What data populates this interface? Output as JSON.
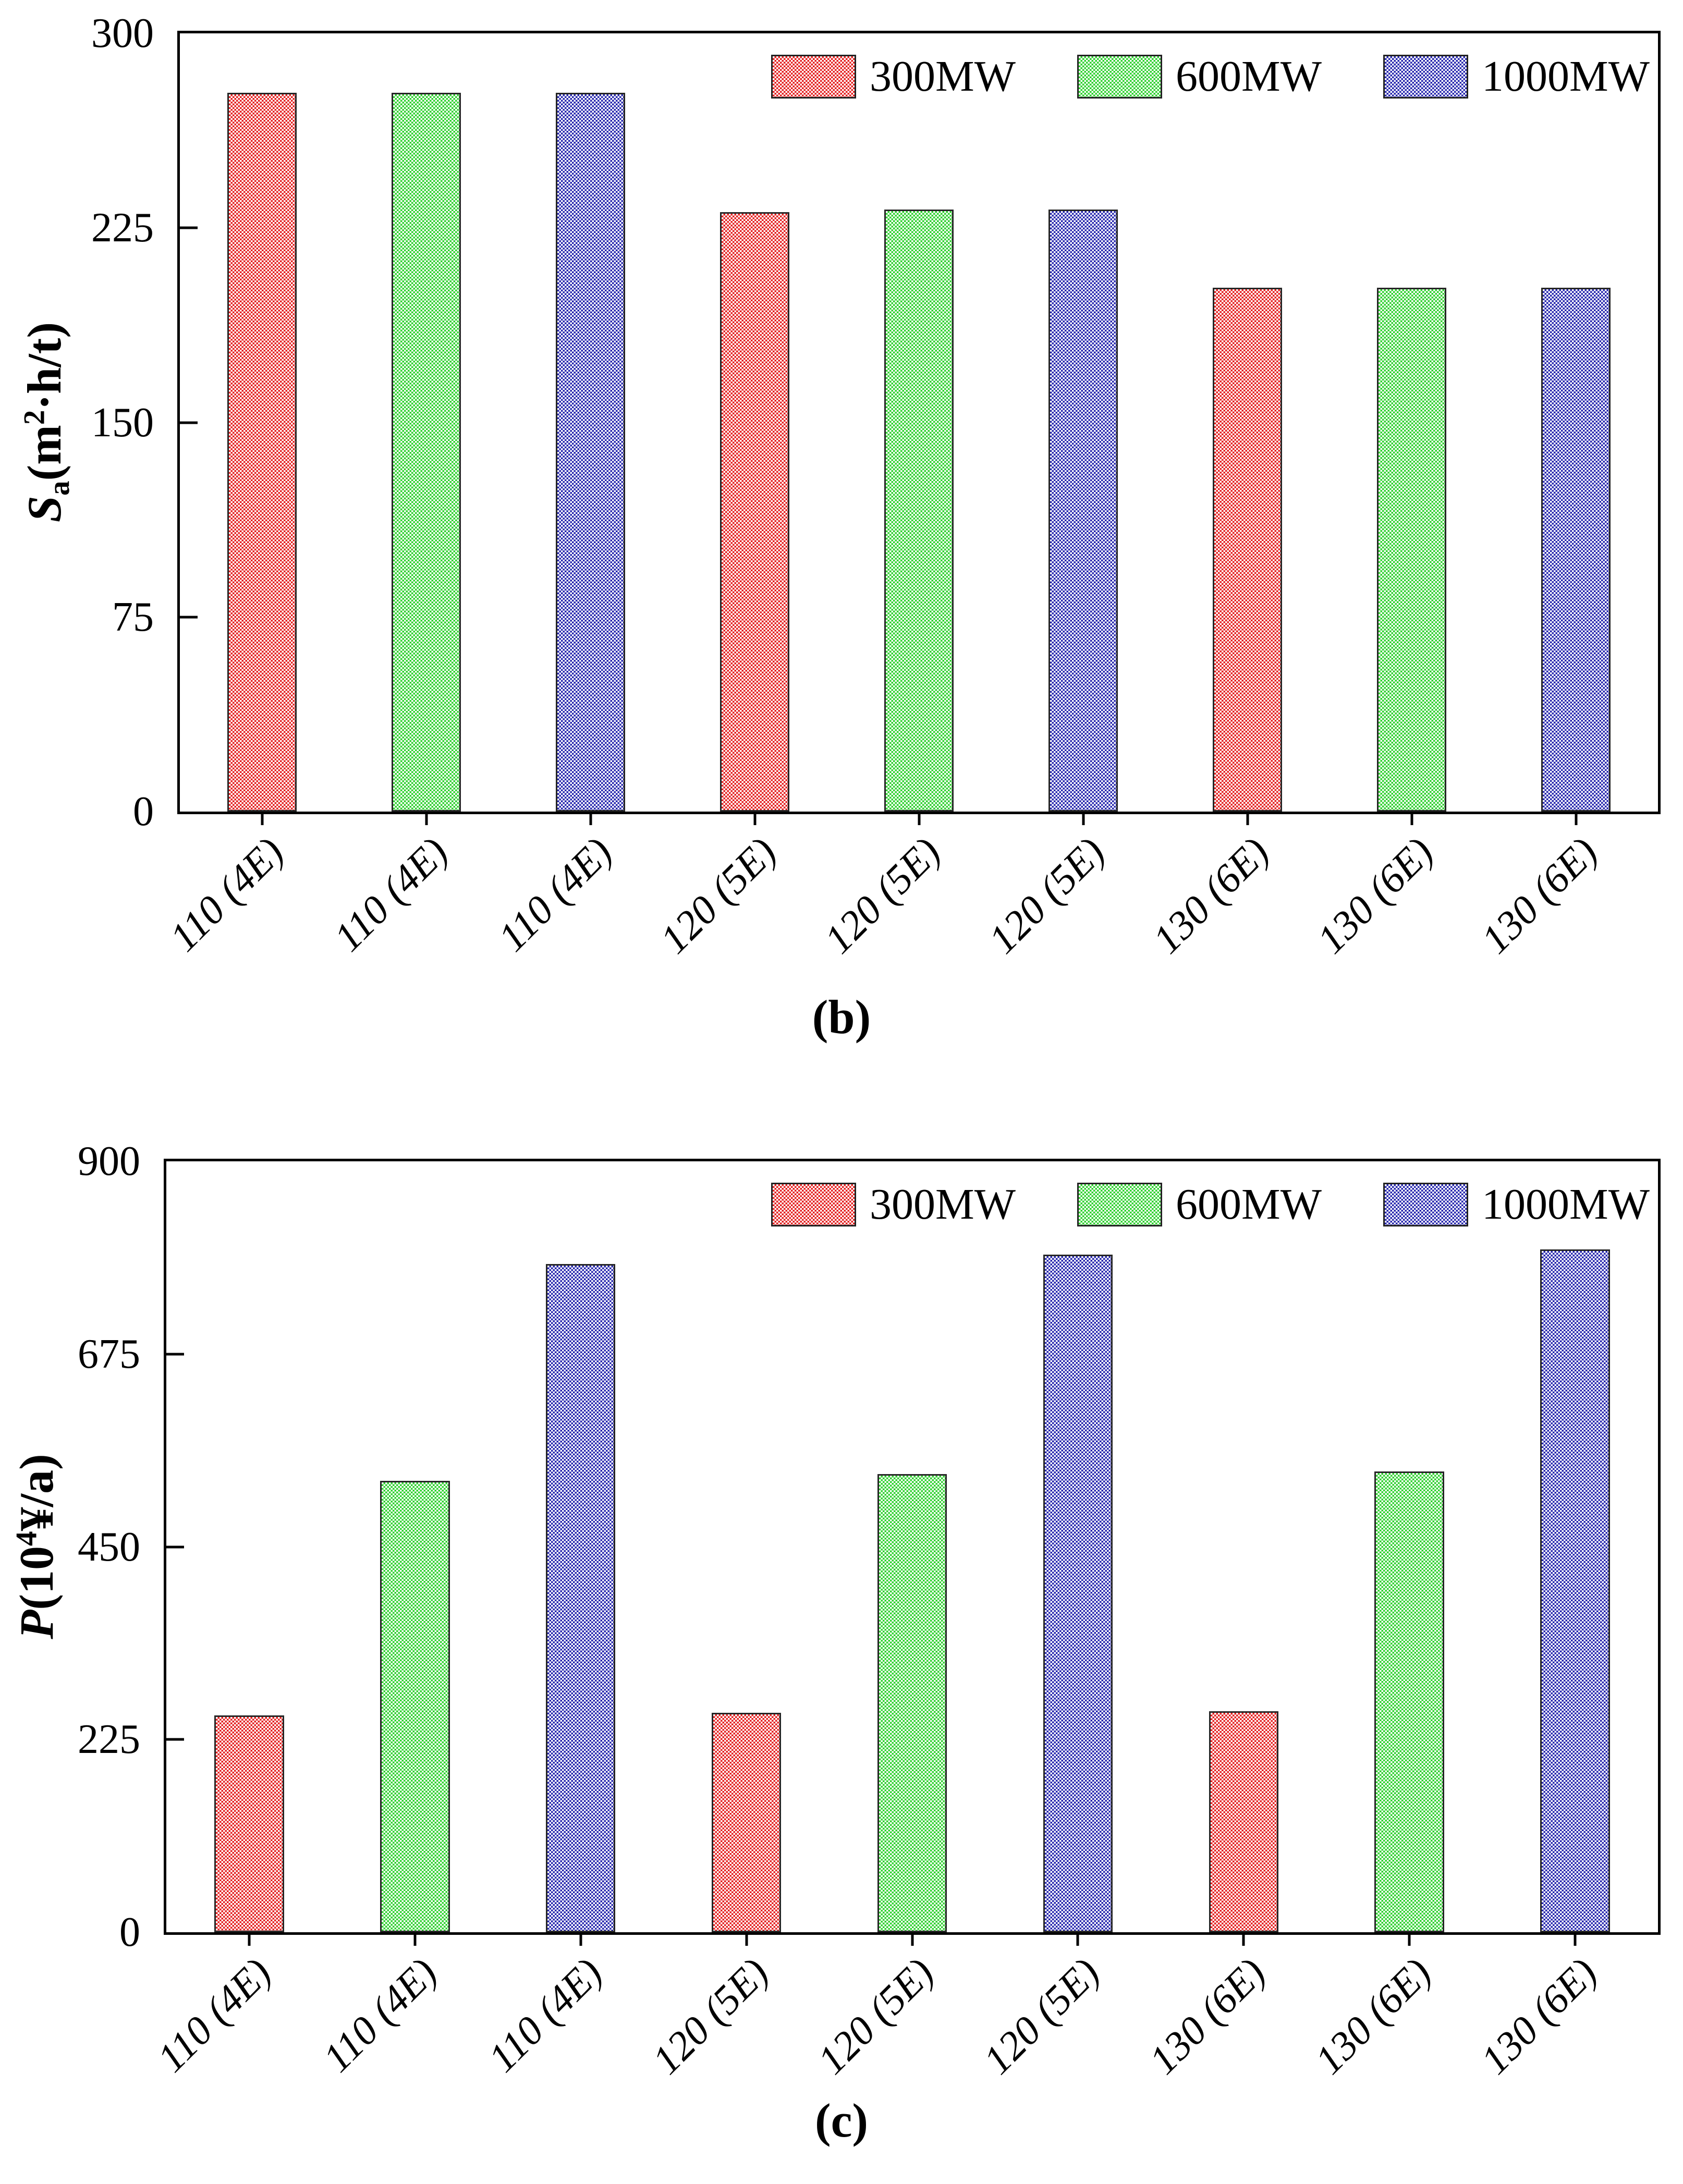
{
  "captions": [
    "(b)",
    "(c)"
  ],
  "chart_data": [
    {
      "type": "bar",
      "panel": "(b)",
      "ylabel_parts": {
        "var": "S",
        "sub": "a",
        "pre": "(m",
        "sup": "2",
        "post": "·h/t)"
      },
      "ylim": [
        0,
        300
      ],
      "yticks": [
        0,
        75,
        150,
        225,
        300
      ],
      "groups": [
        "110 (4E)",
        "120 (5E)",
        "130 (6E)"
      ],
      "categories": [
        "110 (4E)",
        "110 (4E)",
        "110 (4E)",
        "120 (5E)",
        "120 (5E)",
        "120 (5E)",
        "130 (6E)",
        "130 (6E)",
        "130 (6E)"
      ],
      "legend_position": "top-right",
      "grid": false,
      "series": [
        {
          "name": "300MW",
          "color": "#e41f1f",
          "values": [
            277,
            231,
            202
          ]
        },
        {
          "name": "600MW",
          "color": "#2ed02e",
          "values": [
            277,
            232,
            202
          ]
        },
        {
          "name": "1000MW",
          "color": "#2525ad",
          "values": [
            277,
            232,
            202
          ]
        }
      ]
    },
    {
      "type": "bar",
      "panel": "(c)",
      "ylabel_parts": {
        "var": "P",
        "sub": "",
        "pre": "(10",
        "sup": "4",
        "post": "¥/a)"
      },
      "ylim": [
        0,
        900
      ],
      "yticks": [
        0,
        225,
        450,
        675,
        900
      ],
      "groups": [
        "110 (4E)",
        "120 (5E)",
        "130 (6E)"
      ],
      "categories": [
        "110 (4E)",
        "110 (4E)",
        "110 (4E)",
        "120 (5E)",
        "120 (5E)",
        "120 (5E)",
        "130 (6E)",
        "130 (6E)",
        "130 (6E)"
      ],
      "legend_position": "top-right",
      "grid": false,
      "series": [
        {
          "name": "300MW",
          "color": "#e41f1f",
          "values": [
            253,
            256,
            258
          ]
        },
        {
          "name": "600MW",
          "color": "#2ed02e",
          "values": [
            527,
            535,
            538
          ]
        },
        {
          "name": "1000MW",
          "color": "#2525ad",
          "values": [
            780,
            791,
            797
          ]
        }
      ]
    }
  ]
}
